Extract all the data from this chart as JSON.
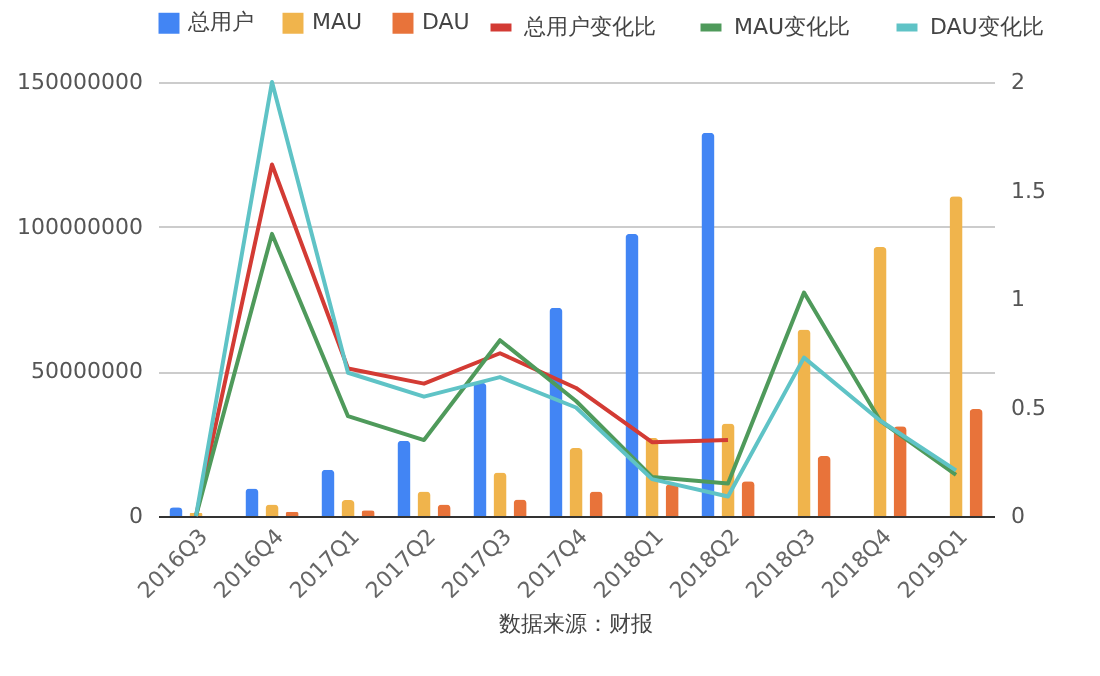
{
  "chart_data": {
    "type": "bar",
    "categories": [
      "2016Q3",
      "2016Q4",
      "2017Q1",
      "2017Q2",
      "2017Q3",
      "2017Q4",
      "2018Q1",
      "2018Q2",
      "2018Q3",
      "2018Q4",
      "2019Q1"
    ],
    "series": [
      {
        "name": "总用户",
        "color": "#4285f4",
        "values": [
          3000000,
          9500000,
          16000000,
          26000000,
          46000000,
          72000000,
          97500000,
          132500000,
          null,
          null,
          null
        ]
      },
      {
        "name": "MAU",
        "color": "#f0b44c",
        "values": [
          1000000,
          4000000,
          5500000,
          8500000,
          15000000,
          23500000,
          27000000,
          32000000,
          64500000,
          93000000,
          110500000
        ]
      },
      {
        "name": "DAU",
        "color": "#e8733a",
        "values": [
          null,
          1500000,
          2000000,
          4000000,
          5700000,
          8500000,
          11000000,
          12000000,
          20700000,
          31000000,
          37000000
        ]
      },
      {
        "name": "总用户变化比",
        "type": "line",
        "axis": "y2",
        "color": "#d33b34",
        "values": [
          0,
          1.62,
          0.68,
          0.61,
          0.75,
          0.59,
          0.34,
          0.35,
          null,
          null,
          null
        ]
      },
      {
        "name": "MAU变化比",
        "type": "line",
        "axis": "y2",
        "color": "#4f9a5b",
        "values": [
          0,
          1.3,
          0.46,
          0.35,
          0.81,
          0.53,
          0.18,
          0.15,
          1.03,
          0.44,
          0.19
        ]
      },
      {
        "name": "DAU变化比",
        "type": "line",
        "axis": "y2",
        "color": "#5fc3c6",
        "values": [
          0,
          2,
          0.66,
          0.55,
          0.64,
          0.5,
          0.17,
          0.09,
          0.73,
          0.44,
          0.21
        ]
      }
    ],
    "ylim": [
      0,
      150000000
    ],
    "yticks": [
      0,
      50000000,
      100000000,
      150000000
    ],
    "y2lim": [
      0,
      2
    ],
    "y2ticks": [
      0,
      0.5,
      1,
      1.5,
      2
    ],
    "grid": "y",
    "legend": "top",
    "annotations": [
      "数据来源：财报"
    ]
  }
}
